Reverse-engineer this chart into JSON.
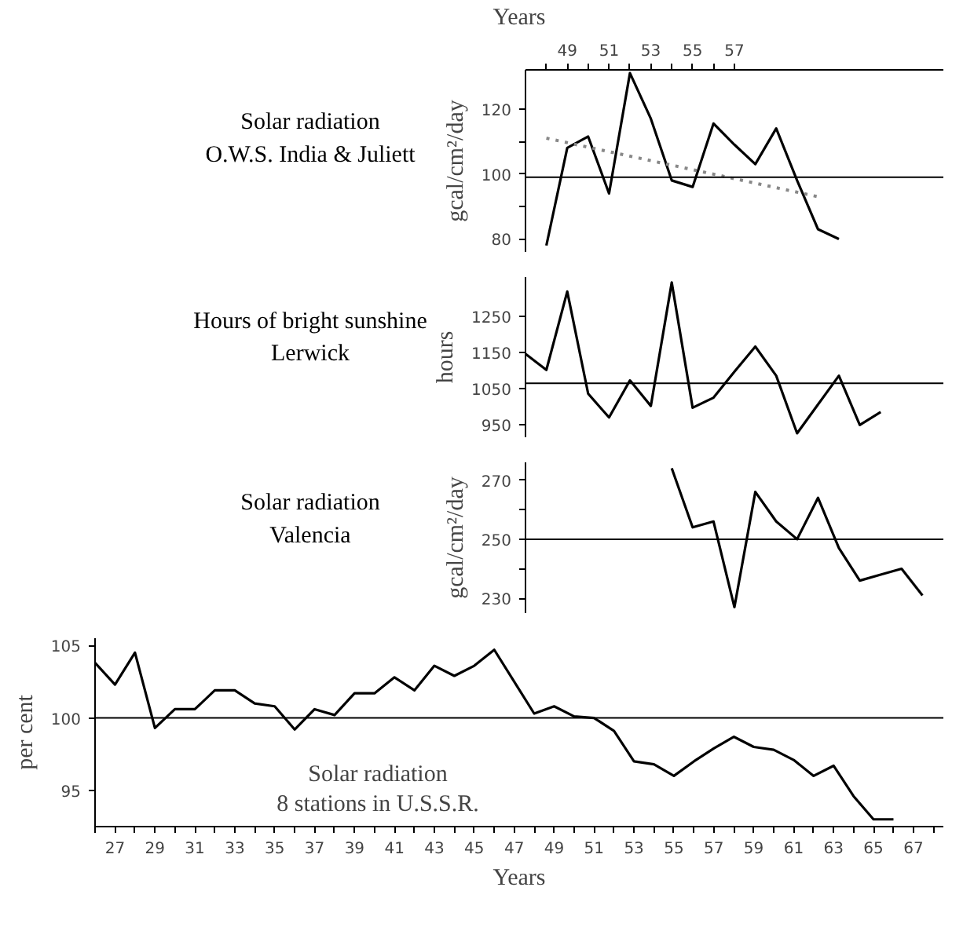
{
  "chart_data": [
    {
      "type": "line",
      "title": "Solar radiation\nO.W.S. India & Juliett",
      "ylabel": "gcal/cm²/day",
      "xlabel": "Years",
      "xlim": [
        47,
        67
      ],
      "xticks": [
        {
          "value": 48,
          "label": null
        },
        49,
        {
          "value": 50,
          "label": null
        },
        51,
        {
          "value": 52,
          "label": null
        },
        53,
        {
          "value": 54,
          "label": null
        },
        55,
        {
          "value": 56,
          "label": null
        },
        57
      ],
      "ylim": [
        76,
        132
      ],
      "yticks": [
        80,
        {
          "value": 90,
          "label": null
        },
        100,
        {
          "value": 110,
          "label": null
        },
        120
      ],
      "series": [
        {
          "color": "#000000",
          "x": [
            48,
            49,
            50,
            51,
            52,
            53,
            54,
            55,
            56,
            57,
            58,
            59,
            60,
            61,
            62
          ],
          "values": [
            78,
            108,
            111.5,
            94,
            131,
            117,
            98,
            96,
            115.5,
            109,
            103,
            114,
            98,
            83,
            80
          ]
        },
        {
          "color": "#888888",
          "line_style": "dotted",
          "x": [
            48,
            61
          ],
          "values": [
            111,
            93
          ]
        }
      ],
      "ref_lines": [
        {
          "axis": "y",
          "value": 99
        }
      ]
    },
    {
      "type": "line",
      "title": "Hours of bright sunshine\nLerwick",
      "ylabel": "hours",
      "xlim": [
        47,
        67
      ],
      "ylim": [
        915,
        1360
      ],
      "yticks": [
        950,
        1050,
        1150,
        1250
      ],
      "tick_labels": "y",
      "series": [
        {
          "color": "#000000",
          "x": [
            47,
            48,
            49,
            50,
            51,
            52,
            53,
            54,
            55,
            56,
            57,
            58,
            59,
            60,
            61,
            62,
            63,
            64
          ],
          "values": [
            1147,
            1102,
            1320,
            1036,
            970,
            1073,
            1002,
            1345,
            997,
            1025,
            1097,
            1167,
            1086,
            926,
            1006,
            1086,
            949,
            985
          ]
        }
      ],
      "ref_lines": [
        {
          "axis": "y",
          "value": 1065
        }
      ]
    },
    {
      "type": "line",
      "title": "Solar radiation\nValencia",
      "ylabel": "gcal/cm²/day",
      "xlim": [
        47,
        67
      ],
      "ylim": [
        225,
        276
      ],
      "yticks": [
        230,
        {
          "value": 240,
          "label": null
        },
        250,
        {
          "value": 260,
          "label": null
        },
        270
      ],
      "tick_labels": "y",
      "series": [
        {
          "color": "#000000",
          "x": [
            54,
            55,
            56,
            57,
            58,
            59,
            60,
            61,
            62,
            63,
            64,
            65,
            66
          ],
          "values": [
            274,
            254,
            256,
            227,
            266,
            256,
            250,
            264,
            247,
            236,
            238,
            240,
            231
          ]
        }
      ],
      "ref_lines": [
        {
          "axis": "y",
          "value": 250
        }
      ]
    },
    {
      "type": "line",
      "title": "Solar radiation\n8 stations in U.S.S.R.",
      "ylabel": "per cent",
      "xlabel": "Years",
      "xlim": [
        26,
        68.5
      ],
      "ylim": [
        92.5,
        105.5
      ],
      "yticks": [
        95,
        100,
        105
      ],
      "xticks": [
        {
          "value": 26,
          "label": null
        },
        27,
        {
          "value": 28,
          "label": null
        },
        29,
        {
          "value": 30,
          "label": null
        },
        31,
        {
          "value": 32,
          "label": null
        },
        33,
        {
          "value": 34,
          "label": null
        },
        35,
        {
          "value": 36,
          "label": null
        },
        37,
        {
          "value": 38,
          "label": null
        },
        39,
        {
          "value": 40,
          "label": null
        },
        41,
        {
          "value": 42,
          "label": null
        },
        43,
        {
          "value": 44,
          "label": null
        },
        45,
        {
          "value": 46,
          "label": null
        },
        47,
        {
          "value": 48,
          "label": null
        },
        49,
        {
          "value": 50,
          "label": null
        },
        51,
        {
          "value": 52,
          "label": null
        },
        53,
        {
          "value": 54,
          "label": null
        },
        55,
        {
          "value": 56,
          "label": null
        },
        57,
        {
          "value": 58,
          "label": null
        },
        59,
        {
          "value": 60,
          "label": null
        },
        61,
        {
          "value": 62,
          "label": null
        },
        63,
        {
          "value": 64,
          "label": null
        },
        65,
        {
          "value": 66,
          "label": null
        },
        67,
        {
          "value": 68,
          "label": null
        }
      ],
      "series": [
        {
          "color": "#000000",
          "x": [
            26,
            27,
            28,
            29,
            30,
            31,
            32,
            33,
            34,
            35,
            36,
            37,
            38,
            39,
            40,
            41,
            42,
            43,
            44,
            45,
            46,
            47,
            48,
            49,
            50,
            51,
            52,
            53,
            54,
            55,
            56,
            57,
            58,
            59,
            60,
            61,
            62,
            63,
            64,
            65,
            66
          ],
          "values": [
            103.8,
            102.3,
            104.5,
            99.3,
            100.6,
            100.6,
            101.9,
            101.9,
            101.0,
            100.8,
            99.2,
            100.6,
            100.2,
            101.7,
            101.7,
            102.8,
            101.9,
            103.6,
            102.9,
            103.6,
            104.7,
            102.5,
            100.3,
            100.8,
            100.1,
            100.0,
            99.1,
            97.0,
            96.8,
            96.0,
            97.0,
            97.9,
            98.7,
            98.0,
            97.8,
            97.1,
            96.0,
            96.7,
            94.6,
            93.0,
            93.0
          ]
        }
      ],
      "ref_lines": [
        {
          "axis": "y",
          "value": 100
        }
      ]
    }
  ]
}
